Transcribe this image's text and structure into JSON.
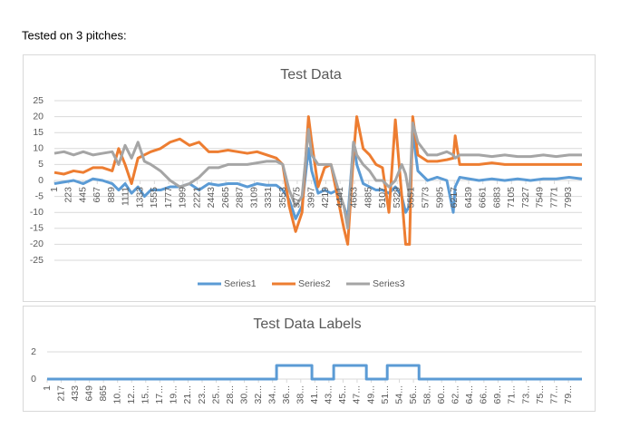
{
  "header": {
    "text": "Tested on 3 pitches:"
  },
  "chart_data": [
    {
      "type": "line",
      "title": "Test Data",
      "x": [
        1,
        150,
        300,
        450,
        600,
        750,
        900,
        1000,
        1100,
        1200,
        1300,
        1400,
        1500,
        1650,
        1800,
        1950,
        2100,
        2250,
        2400,
        2550,
        2700,
        2850,
        3000,
        3150,
        3300,
        3450,
        3550,
        3650,
        3750,
        3850,
        3950,
        4000,
        4100,
        4200,
        4300,
        4400,
        4500,
        4560,
        4650,
        4700,
        4800,
        4900,
        5000,
        5100,
        5200,
        5300,
        5400,
        5460,
        5520,
        5570,
        5650,
        5800,
        5950,
        6100,
        6200,
        6230,
        6300,
        6450,
        6600,
        6800,
        7000,
        7200,
        7400,
        7600,
        7800,
        8000,
        8200
      ],
      "series": [
        {
          "name": "Series1",
          "color": "#5b9bd5",
          "values": [
            -1,
            -0.5,
            0,
            -1,
            0.5,
            0,
            -1,
            -3,
            -1,
            -4,
            -2,
            -5,
            -3,
            -3,
            -2,
            -2,
            -1,
            -3,
            -1,
            -1.5,
            -1,
            -1,
            -2,
            -1,
            -1.5,
            -1.5,
            -3,
            -6,
            -12,
            -8,
            10,
            3,
            -4,
            -3,
            -4,
            -3,
            -8,
            -12,
            12,
            5,
            -1,
            -2,
            -3,
            -3,
            -4,
            -2,
            -5,
            -10,
            -8,
            15,
            3,
            0,
            1,
            0,
            -10,
            -2,
            1,
            0.5,
            0,
            0.5,
            0,
            0.5,
            0,
            0.5,
            0.5,
            1,
            0.5
          ]
        },
        {
          "name": "Series2",
          "color": "#ed7d31",
          "values": [
            2.5,
            2,
            3,
            2.5,
            4,
            4,
            3,
            10,
            5,
            -1,
            7,
            8,
            9,
            10,
            12,
            13,
            11,
            12,
            9,
            9,
            9.5,
            9,
            8.5,
            9,
            8,
            7,
            5,
            -8,
            -16,
            -10,
            20,
            12,
            -2,
            4,
            5,
            -5,
            -15,
            -20,
            8,
            20,
            10,
            8,
            5,
            4,
            -10,
            19,
            -5,
            -20,
            -20,
            20,
            8,
            6,
            6,
            6.5,
            7,
            14,
            5,
            5,
            5,
            5.5,
            5,
            5,
            5,
            5,
            5,
            5,
            5
          ]
        },
        {
          "name": "Series3",
          "color": "#a5a5a5",
          "values": [
            8.5,
            9,
            8,
            9,
            8,
            8.5,
            9,
            5,
            11,
            7,
            12,
            6,
            5,
            3,
            0,
            -2,
            -1,
            1,
            4,
            4,
            5,
            5,
            5,
            5.5,
            6,
            6,
            5,
            -3,
            -8,
            -5,
            16,
            8,
            5,
            5,
            5,
            -2,
            -8,
            -15,
            12,
            8,
            5,
            3,
            0,
            0,
            -2,
            0,
            5,
            2,
            -5,
            18,
            12,
            8,
            8,
            9,
            8,
            7,
            8,
            8,
            8,
            7.5,
            8,
            7.5,
            7.5,
            8,
            7.5,
            8,
            8
          ]
        }
      ],
      "xlim": [
        1,
        8200
      ],
      "xticks": [
        1,
        223,
        445,
        667,
        889,
        1111,
        1333,
        1555,
        1777,
        1999,
        2221,
        2443,
        2665,
        2887,
        3109,
        3331,
        3553,
        3775,
        3997,
        4219,
        4441,
        4663,
        4885,
        5107,
        5329,
        5551,
        5773,
        5995,
        6217,
        6439,
        6661,
        6883,
        7105,
        7327,
        7549,
        7771,
        7993
      ],
      "ylim": [
        -25,
        25
      ],
      "yticks": [
        -25,
        -20,
        -15,
        -10,
        -5,
        0,
        5,
        10,
        15,
        20,
        25
      ],
      "grid": true,
      "legend": "bottom"
    },
    {
      "type": "line",
      "title": "Test Data Labels",
      "x": [
        1,
        3518,
        3518,
        4060,
        4060,
        4394,
        4394,
        4895,
        4895,
        5215,
        5215,
        5702,
        5702,
        8200
      ],
      "series": [
        {
          "color": "#5b9bd5",
          "values": [
            0,
            0,
            1,
            1,
            0,
            0,
            1,
            1,
            0,
            0,
            1,
            1,
            0,
            0
          ]
        }
      ],
      "xlim": [
        1,
        8200
      ],
      "xticks": [
        1,
        217,
        433,
        649,
        865,
        {
          "value": 1081,
          "label": "10..."
        },
        {
          "value": 1297,
          "label": "12..."
        },
        {
          "value": 1513,
          "label": "15..."
        },
        {
          "value": 1729,
          "label": "17..."
        },
        {
          "value": 1945,
          "label": "19..."
        },
        {
          "value": 2161,
          "label": "21..."
        },
        {
          "value": 2377,
          "label": "23..."
        },
        {
          "value": 2593,
          "label": "25..."
        },
        {
          "value": 2809,
          "label": "28..."
        },
        {
          "value": 3025,
          "label": "30..."
        },
        {
          "value": 3241,
          "label": "32..."
        },
        {
          "value": 3457,
          "label": "34..."
        },
        {
          "value": 3673,
          "label": "36..."
        },
        {
          "value": 3889,
          "label": "38..."
        },
        {
          "value": 4105,
          "label": "41..."
        },
        {
          "value": 4321,
          "label": "43..."
        },
        {
          "value": 4537,
          "label": "45..."
        },
        {
          "value": 4753,
          "label": "47..."
        },
        {
          "value": 4969,
          "label": "49..."
        },
        {
          "value": 5185,
          "label": "51..."
        },
        {
          "value": 5401,
          "label": "54..."
        },
        {
          "value": 5617,
          "label": "56..."
        },
        {
          "value": 5833,
          "label": "58..."
        },
        {
          "value": 6049,
          "label": "60..."
        },
        {
          "value": 6265,
          "label": "62..."
        },
        {
          "value": 6481,
          "label": "64..."
        },
        {
          "value": 6697,
          "label": "66..."
        },
        {
          "value": 6913,
          "label": "69..."
        },
        {
          "value": 7129,
          "label": "71..."
        },
        {
          "value": 7345,
          "label": "73..."
        },
        {
          "value": 7561,
          "label": "75..."
        },
        {
          "value": 7777,
          "label": "77..."
        },
        {
          "value": 7993,
          "label": "79..."
        }
      ],
      "ylim": [
        0,
        2
      ],
      "yticks": [
        0,
        2
      ],
      "grid": true
    }
  ]
}
